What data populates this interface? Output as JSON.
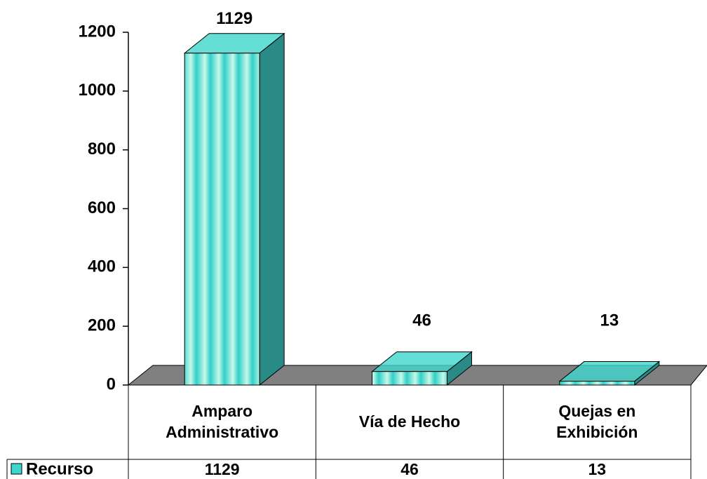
{
  "chart_data": {
    "type": "bar3d",
    "categories": [
      "Amparo Administrativo",
      "Vía de Hecho",
      "Quejas en Exhibición"
    ],
    "series": [
      {
        "name": "Recurso",
        "color": "#3fd6cc",
        "values": [
          1129,
          46,
          13
        ]
      }
    ],
    "ylim": [
      0,
      1200
    ],
    "yticks": [
      0,
      200,
      400,
      600,
      800,
      1000,
      1200
    ],
    "data_table": true
  }
}
